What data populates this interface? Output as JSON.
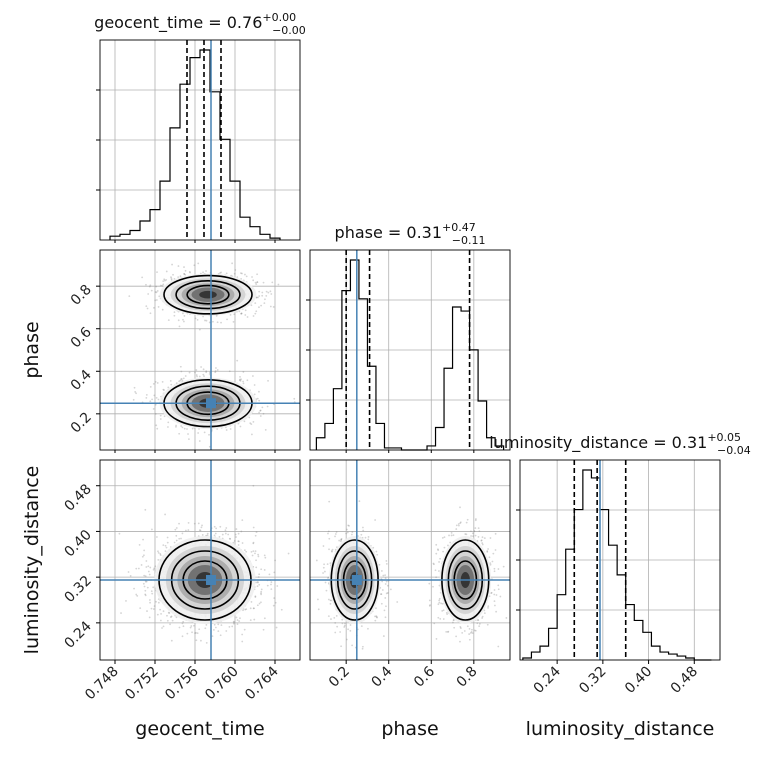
{
  "chart_data": {
    "type": "corner",
    "parameters": [
      "geocent_time",
      "phase",
      "luminosity_distance"
    ],
    "axis_labels": [
      "geocent_time",
      "phase",
      "luminosity_distance"
    ],
    "ranges": [
      [
        0.7465,
        0.7665
      ],
      [
        0.03,
        0.97
      ],
      [
        0.175,
        0.525
      ]
    ],
    "ticks": [
      {
        "values": [
          0.748,
          0.752,
          0.756,
          0.76,
          0.764
        ],
        "labels": [
          "0.748",
          "0.752",
          "0.756",
          "0.760",
          "0.764"
        ]
      },
      {
        "values": [
          0.2,
          0.4,
          0.6,
          0.8
        ],
        "labels": [
          "0.2",
          "0.4",
          "0.6",
          "0.8"
        ]
      },
      {
        "values": [
          0.24,
          0.32,
          0.4,
          0.48
        ],
        "labels": [
          "0.24",
          "0.32",
          "0.40",
          "0.48"
        ]
      }
    ],
    "truths": [
      0.7576,
      0.25,
      0.315
    ],
    "titles": [
      {
        "prefix": "geocent_time = 0.76",
        "plus": "+0.00",
        "minus": "−0.00"
      },
      {
        "prefix": "phase = 0.31",
        "plus": "+0.47",
        "minus": "−0.11"
      },
      {
        "prefix": "luminosity_distance = 0.31",
        "plus": "+0.05",
        "minus": "−0.04"
      }
    ],
    "quantiles": [
      [
        0.7552,
        0.7569,
        0.7586
      ],
      [
        0.2,
        0.31,
        0.78
      ],
      [
        0.27,
        0.31,
        0.36
      ]
    ],
    "histograms": [
      {
        "bins": [
          0.7475,
          0.7485,
          0.7495,
          0.7505,
          0.7515,
          0.7525,
          0.7535,
          0.7545,
          0.7555,
          0.7565,
          0.7575,
          0.7585,
          0.7595,
          0.7605,
          0.7615,
          0.7625,
          0.7635,
          0.7645
        ],
        "counts": [
          2,
          3,
          5,
          10,
          16,
          31,
          59,
          82,
          96,
          100,
          78,
          53,
          31,
          12,
          7,
          3,
          1
        ]
      },
      {
        "bins": [
          0.06,
          0.1,
          0.14,
          0.18,
          0.22,
          0.26,
          0.3,
          0.34,
          0.38,
          0.42,
          0.46,
          0.5,
          0.54,
          0.58,
          0.62,
          0.66,
          0.7,
          0.74,
          0.78,
          0.82,
          0.86,
          0.9,
          0.94
        ],
        "counts": [
          6,
          13,
          30,
          78,
          93,
          74,
          41,
          13,
          1,
          1,
          0,
          0,
          0,
          2,
          11,
          40,
          70,
          68,
          49,
          24,
          6,
          2
        ]
      },
      {
        "bins": [
          0.18,
          0.195,
          0.21,
          0.225,
          0.24,
          0.255,
          0.27,
          0.285,
          0.3,
          0.315,
          0.33,
          0.345,
          0.36,
          0.375,
          0.39,
          0.405,
          0.42,
          0.435,
          0.45,
          0.465,
          0.48,
          0.495,
          0.51
        ],
        "counts": [
          1,
          4,
          7,
          16,
          33,
          56,
          76,
          96,
          92,
          76,
          58,
          43,
          28,
          20,
          14,
          7,
          4,
          3,
          2,
          1,
          0,
          0
        ]
      }
    ],
    "density_blobs": {
      "phase_vs_geocent_time": [
        {
          "cx": 0.7573,
          "cy": 0.76,
          "sx": 0.0022,
          "sy": 0.045,
          "weight": 0.5
        },
        {
          "cx": 0.7573,
          "cy": 0.25,
          "sx": 0.0022,
          "sy": 0.055,
          "weight": 0.5
        }
      ],
      "luminosity_distance_vs_geocent_time": [
        {
          "cx": 0.757,
          "cy": 0.315,
          "sx": 0.0023,
          "sy": 0.035,
          "weight": 1.0
        }
      ],
      "luminosity_distance_vs_phase": [
        {
          "cx": 0.24,
          "cy": 0.315,
          "sx": 0.055,
          "sy": 0.035,
          "weight": 0.5
        },
        {
          "cx": 0.76,
          "cy": 0.315,
          "sx": 0.055,
          "sy": 0.035,
          "weight": 0.5
        }
      ]
    },
    "contour_levels": [
      0.118,
      0.393,
      0.675,
      0.865
    ],
    "grid": true,
    "colors": {
      "hist": "#000000",
      "truth": "#4682b4",
      "grid": "#b0b0b0",
      "spine": "#000000",
      "scatter": "#888888"
    }
  }
}
